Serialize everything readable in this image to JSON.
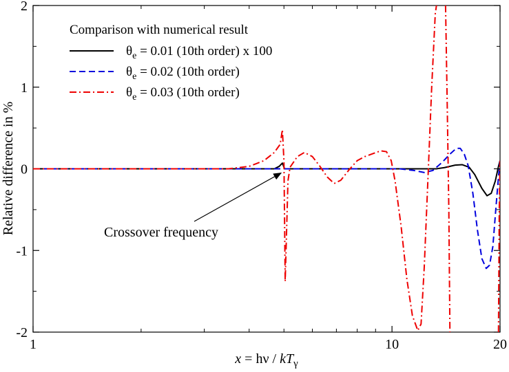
{
  "chart_data": {
    "type": "line",
    "xscale": "log",
    "xlim": [
      1,
      20
    ],
    "ylim": [
      -2,
      2
    ],
    "xticks": [
      1,
      10,
      20
    ],
    "xtick_labels": [
      "1",
      "10",
      "20"
    ],
    "x_minor_ticks": [
      2,
      3,
      4,
      5,
      6,
      7,
      8,
      9
    ],
    "yticks": [
      -2,
      -1,
      0,
      1,
      2
    ],
    "ytick_labels": [
      "-2",
      "-1",
      "0",
      "1",
      "2"
    ],
    "y_minor_ticks": [
      -1.5,
      -0.5,
      0.5,
      1.5
    ],
    "grid": false,
    "ylabel": "Relative difference in %",
    "xlabel": {
      "x": "x",
      "eq": " = h",
      "nu": "ν",
      "slash": " / ",
      "kT": "kT",
      "sub": "γ"
    },
    "legend": {
      "title": "Comparison with numerical result",
      "placement": "top-left"
    },
    "series": [
      {
        "name": "θe = 0.01 (10th order) x 100",
        "label_theta": "θ",
        "label_sub": "e",
        "label_rest": " = 0.01 (10th order) x 100",
        "color": "#000000",
        "dash": "solid",
        "points": [
          [
            1,
            0
          ],
          [
            4.7,
            0
          ],
          [
            4.85,
            0.03
          ],
          [
            4.95,
            0.07
          ],
          [
            5.02,
            0
          ],
          [
            9,
            0
          ],
          [
            12,
            0
          ],
          [
            13.3,
            0
          ],
          [
            14,
            0.015
          ],
          [
            15,
            0.045
          ],
          [
            15.7,
            0.05
          ],
          [
            16.4,
            0.02
          ],
          [
            17,
            -0.07
          ],
          [
            17.8,
            -0.24
          ],
          [
            18.4,
            -0.33
          ],
          [
            18.9,
            -0.3
          ],
          [
            19.4,
            -0.15
          ],
          [
            19.8,
            0.03
          ],
          [
            20,
            0.1
          ]
        ]
      },
      {
        "name": "θe = 0.02 (10th order)",
        "label_theta": "θ",
        "label_sub": "e",
        "label_rest": " = 0.02 (10th order)",
        "color": "#0000dd",
        "dash": "dashed",
        "points": [
          [
            1,
            0
          ],
          [
            10.5,
            0
          ],
          [
            11.5,
            -0.02
          ],
          [
            12.3,
            -0.045
          ],
          [
            13,
            -0.02
          ],
          [
            13.8,
            0.08
          ],
          [
            14.5,
            0.18
          ],
          [
            15.1,
            0.25
          ],
          [
            15.5,
            0.25
          ],
          [
            15.9,
            0.18
          ],
          [
            16.3,
            0.04
          ],
          [
            16.8,
            -0.3
          ],
          [
            17.3,
            -0.75
          ],
          [
            17.8,
            -1.1
          ],
          [
            18.3,
            -1.22
          ],
          [
            18.7,
            -1.18
          ],
          [
            19.1,
            -0.95
          ],
          [
            19.5,
            -0.45
          ],
          [
            19.8,
            -0.1
          ],
          [
            20,
            0.1
          ]
        ]
      },
      {
        "name": "θe = 0.03 (10th order)",
        "label_theta": "θ",
        "label_sub": "e",
        "label_rest": " = 0.03 (10th order)",
        "color": "#ee0000",
        "dash": "dashdot",
        "points": [
          [
            1,
            0
          ],
          [
            3.5,
            0
          ],
          [
            4.0,
            0.03
          ],
          [
            4.4,
            0.1
          ],
          [
            4.7,
            0.2
          ],
          [
            4.88,
            0.3
          ],
          [
            4.95,
            0.48
          ],
          [
            5.0,
            0.1
          ],
          [
            5.04,
            -1.38
          ],
          [
            5.09,
            -0.7
          ],
          [
            5.13,
            -0.15
          ],
          [
            5.2,
            0.02
          ],
          [
            5.45,
            0.15
          ],
          [
            5.7,
            0.2
          ],
          [
            6.0,
            0.15
          ],
          [
            6.3,
            0.03
          ],
          [
            6.6,
            -0.1
          ],
          [
            6.9,
            -0.18
          ],
          [
            7.2,
            -0.14
          ],
          [
            7.6,
            -0.01
          ],
          [
            8.0,
            0.1
          ],
          [
            8.4,
            0.15
          ],
          [
            8.9,
            0.19
          ],
          [
            9.3,
            0.22
          ],
          [
            9.65,
            0.21
          ],
          [
            9.95,
            0.1
          ],
          [
            10.2,
            -0.15
          ],
          [
            10.6,
            -0.7
          ],
          [
            11.0,
            -1.35
          ],
          [
            11.4,
            -1.8
          ],
          [
            11.8,
            -1.98
          ],
          [
            12.05,
            -1.9
          ],
          [
            12.3,
            -1.2
          ],
          [
            12.6,
            -0.1
          ],
          [
            12.9,
            1.0
          ],
          [
            13.2,
            1.9
          ],
          [
            13.3,
            2.0
          ],
          [
            null,
            null
          ],
          [
            14.1,
            2.0
          ],
          [
            14.25,
            0.8
          ],
          [
            14.4,
            -0.5
          ],
          [
            14.5,
            -2.0
          ],
          [
            null,
            null
          ],
          [
            19.8,
            -2.0
          ],
          [
            19.9,
            -0.5
          ],
          [
            20,
            0.1
          ]
        ]
      }
    ],
    "annotations": [
      {
        "text": "Crossover frequency",
        "arrow_to": [
          5.0,
          0.0
        ]
      }
    ]
  }
}
